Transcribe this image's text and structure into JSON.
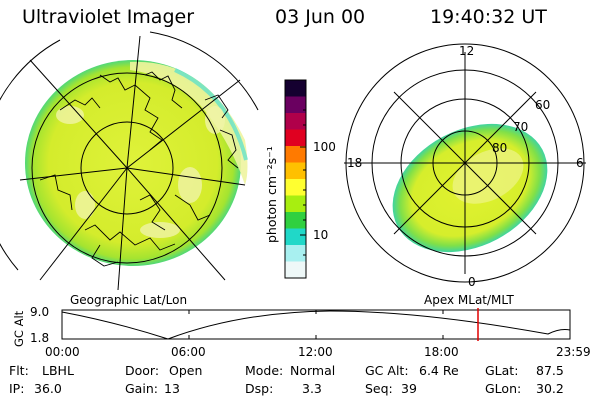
{
  "header": {
    "instrument": "Ultraviolet Imager",
    "date": "03 Jun 00",
    "time": "19:40:32 UT"
  },
  "geo_panel": {
    "label": "Geographic Lat/Lon"
  },
  "colorbar": {
    "unit_label": "photon cm⁻²s⁻¹",
    "tick_labels": [
      "100",
      "10"
    ],
    "colors": [
      "#150030",
      "#6a0060",
      "#b0004a",
      "#e00020",
      "#ff7a00",
      "#ffc000",
      "#ffff30",
      "#a8ee10",
      "#30d040",
      "#20d8c8",
      "#a8f0f0",
      "#eef8f8"
    ]
  },
  "mlt_panel": {
    "label": "Apex MLat/MLT",
    "hour_labels": {
      "top": "12",
      "left": "18",
      "right": "6",
      "bottom": "0"
    },
    "lat_labels": [
      "60",
      "70",
      "80"
    ]
  },
  "orbit": {
    "axis_label": "GC Alt",
    "y_ticks": [
      "9.0",
      "1.8"
    ],
    "x_ticks": [
      "00:00",
      "06:00",
      "12:00",
      "18:00",
      "23:59"
    ],
    "marker_color": "#e00000"
  },
  "status": {
    "row1": [
      {
        "label": "Flt:",
        "value": "LBHL"
      },
      {
        "label": "Door:",
        "value": "Open"
      },
      {
        "label": "Mode:",
        "value": "Normal"
      },
      {
        "label": "GC Alt:",
        "value": "6.4 Re"
      },
      {
        "label": "GLat:",
        "value": "87.5"
      }
    ],
    "row2": [
      {
        "label": "IP:",
        "value": "36.0"
      },
      {
        "label": "Gain:",
        "value": "13"
      },
      {
        "label": "Dsp:",
        "value": "3.3"
      },
      {
        "label": "Seq:",
        "value": "39"
      },
      {
        "label": "GLon:",
        "value": "30.2"
      }
    ]
  },
  "colors": {
    "aurora_main": "#d8ee30",
    "aurora_light": "#f0f498",
    "aurora_edge": "#40d870"
  }
}
